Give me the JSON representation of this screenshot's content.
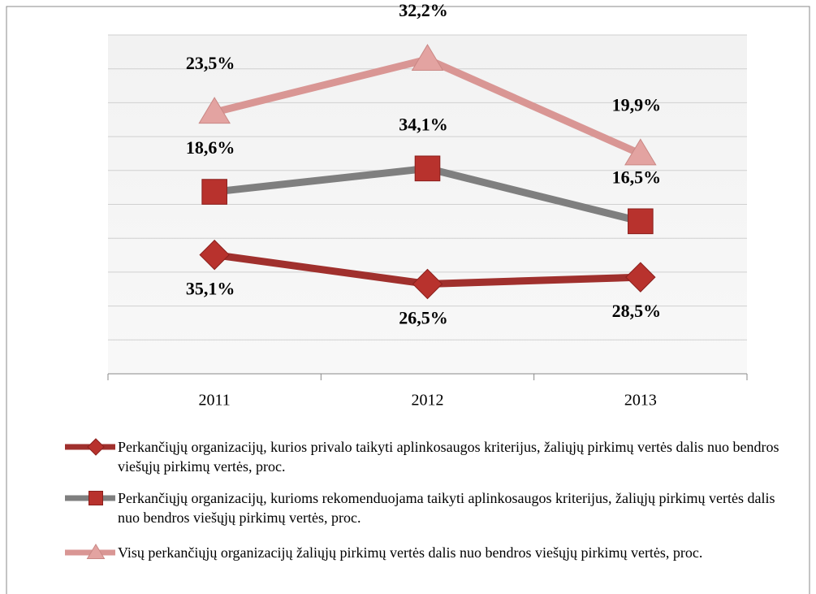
{
  "chart_data": {
    "type": "line",
    "stacked": true,
    "categories": [
      "2011",
      "2012",
      "2013"
    ],
    "ylim": [
      0,
      100
    ],
    "yticks": [
      0,
      10,
      20,
      30,
      40,
      50,
      60,
      70,
      80,
      90,
      100
    ],
    "grid": true,
    "legend": "bottom",
    "series": [
      {
        "name": "Perkančiųjų organizacijų,  kurios privalo taikyti aplinkosaugos kriterijus, žaliųjų pirkimų vertės dalis nuo bendros viešųjų pirkimų vertės, proc.",
        "color": "#a0302d",
        "marker": "diamond",
        "values": [
          35.1,
          26.5,
          28.5
        ],
        "value_labels": [
          "35,1%",
          "26,5%",
          "28,5%"
        ]
      },
      {
        "name": "Perkančiųjų organizacijų,  kurioms rekomenduojama taikyti aplinkosaugos kriterijus, žaliųjų pirkimų vertės dalis nuo bendros viešųjų pirkimų vertės, proc.",
        "color": "#7f7f7f",
        "marker": "square",
        "values": [
          18.6,
          34.1,
          16.5
        ],
        "value_labels": [
          "18,6%",
          "34,1%",
          "16,5%"
        ]
      },
      {
        "name": "Visų perkančiųjų organizacijų  žaliųjų pirkimų vertės dalis nuo bendros viešųjų pirkimų vertės, proc.",
        "color": "#d99694",
        "marker": "triangle",
        "values": [
          23.5,
          32.2,
          19.9
        ],
        "value_labels": [
          "23,5%",
          "32,2%",
          "19,9%"
        ]
      }
    ]
  }
}
